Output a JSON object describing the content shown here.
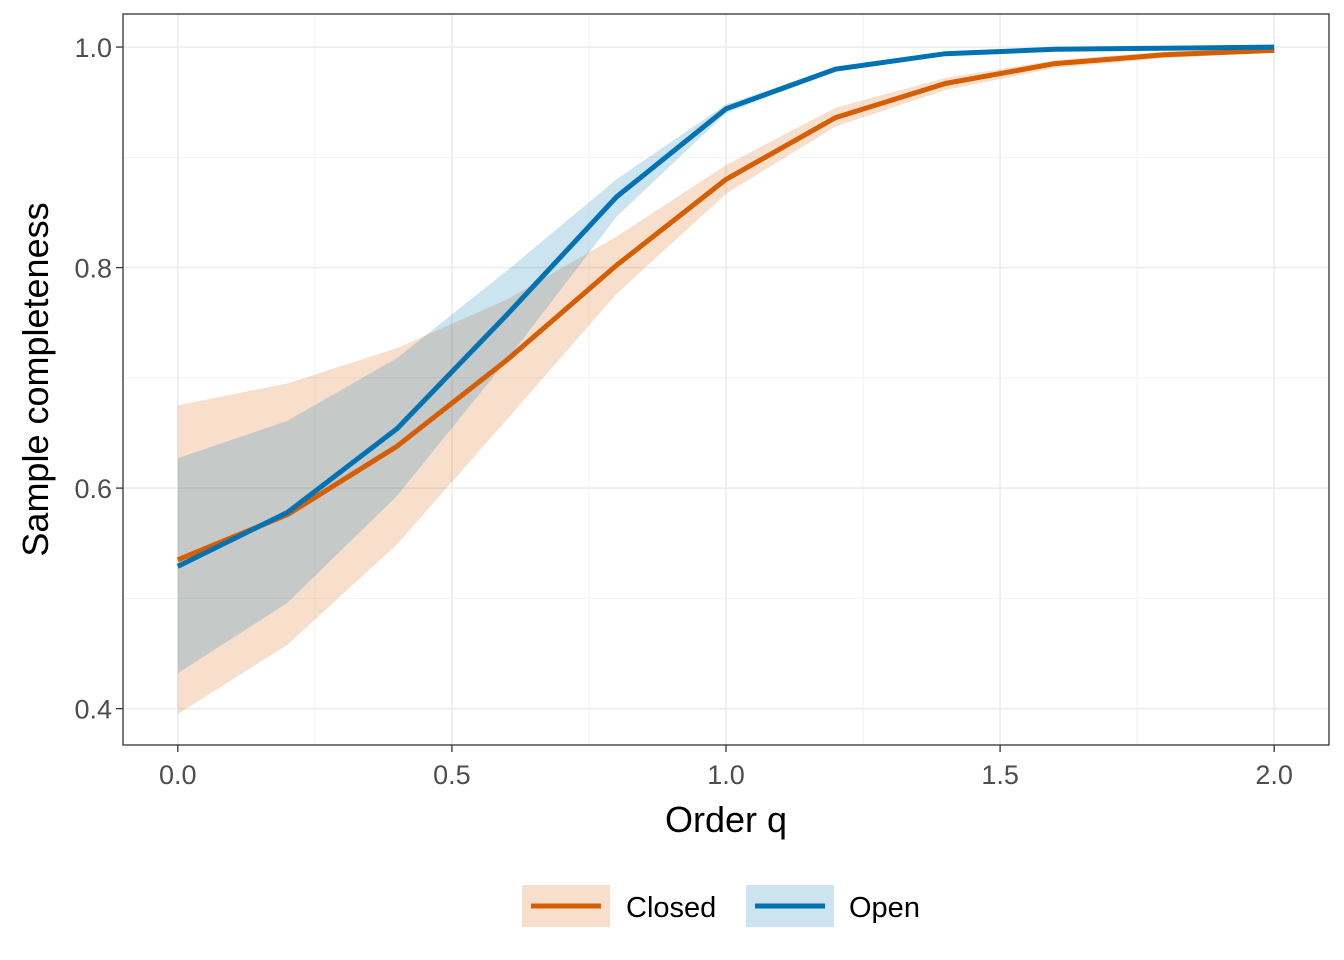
{
  "chart_data": {
    "type": "line",
    "xlabel": "Order q",
    "ylabel": "Sample completeness",
    "xlim": [
      -0.1,
      2.1
    ],
    "ylim": [
      0.367,
      1.03
    ],
    "xticks": [
      0.0,
      0.5,
      1.0,
      1.5,
      2.0
    ],
    "xtick_labels": [
      "0.0",
      "0.5",
      "1.0",
      "1.5",
      "2.0"
    ],
    "yticks": [
      0.4,
      0.6,
      0.8,
      1.0
    ],
    "ytick_labels": [
      "0.4",
      "0.6",
      "0.8",
      "1.0"
    ],
    "grid": true,
    "legend_position": "bottom",
    "x": [
      0.0,
      0.2,
      0.4,
      0.6,
      0.8,
      1.0,
      1.2,
      1.4,
      1.6,
      1.8,
      2.0
    ],
    "series": [
      {
        "name": "Closed",
        "line_color": "#D55E00",
        "fill_color": "#F5C9A8",
        "values": [
          0.535,
          0.576,
          0.638,
          0.716,
          0.802,
          0.88,
          0.936,
          0.967,
          0.985,
          0.993,
          0.997
        ],
        "lower": [
          0.395,
          0.458,
          0.549,
          0.662,
          0.776,
          0.867,
          0.928,
          0.961,
          0.981,
          0.99,
          0.995
        ],
        "upper": [
          0.675,
          0.695,
          0.727,
          0.771,
          0.828,
          0.893,
          0.945,
          0.972,
          0.988,
          0.996,
          0.999
        ]
      },
      {
        "name": "Open",
        "line_color": "#0072B2",
        "fill_color": "#A9D0E6",
        "values": [
          0.529,
          0.578,
          0.654,
          0.757,
          0.864,
          0.944,
          0.98,
          0.994,
          0.998,
          0.999,
          1.0
        ],
        "lower": [
          0.432,
          0.496,
          0.593,
          0.716,
          0.846,
          0.94,
          0.978,
          0.993,
          0.997,
          0.999,
          1.0
        ],
        "upper": [
          0.627,
          0.661,
          0.718,
          0.797,
          0.88,
          0.948,
          0.982,
          0.995,
          0.999,
          1.0,
          1.0
        ]
      }
    ]
  }
}
